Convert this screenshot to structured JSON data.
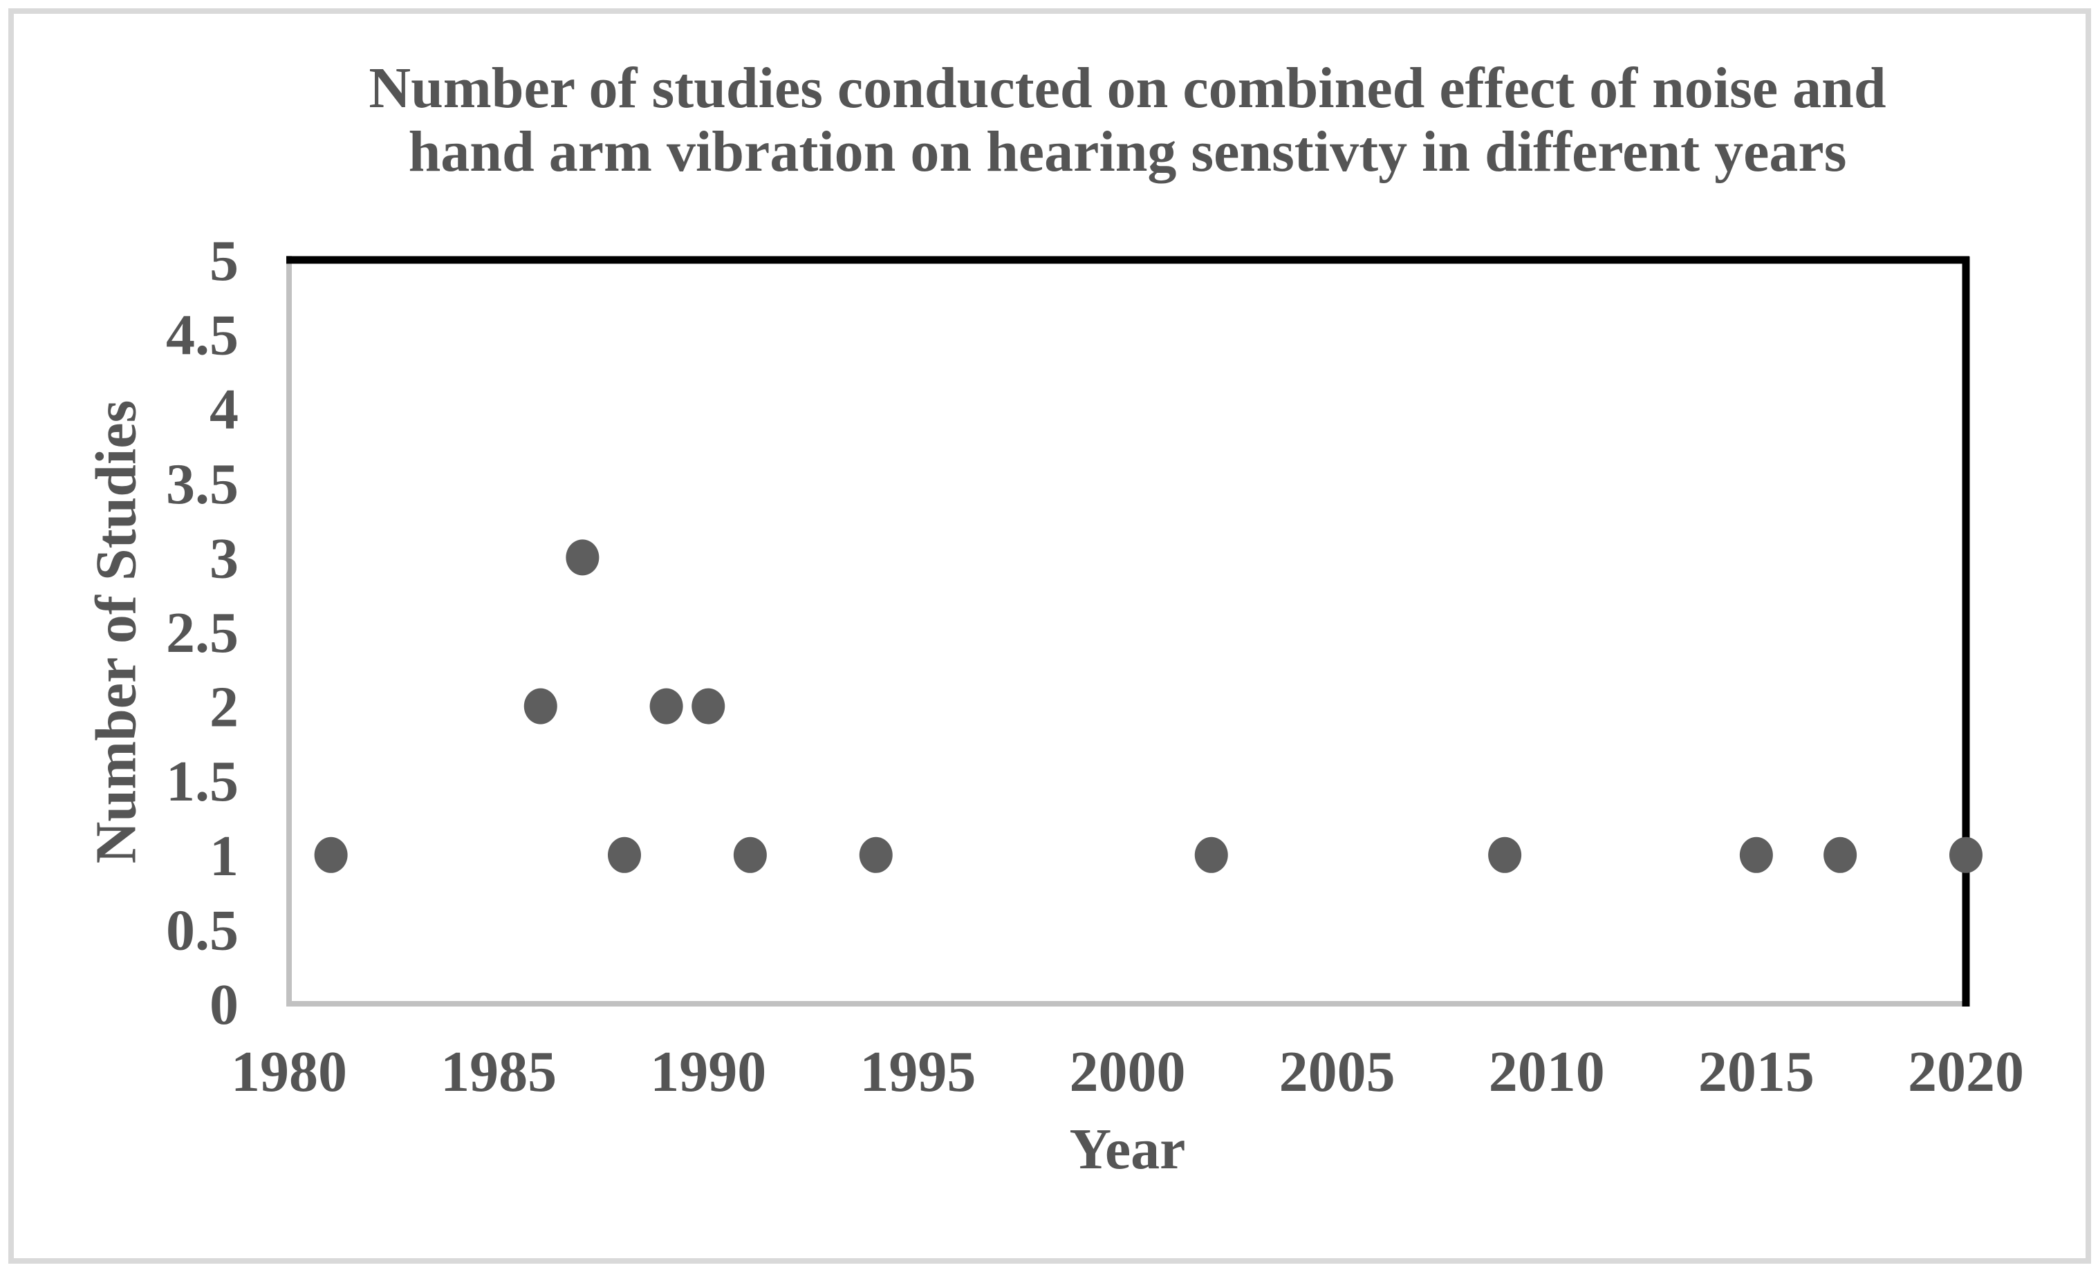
{
  "chart_data": {
    "type": "scatter",
    "title": "Number of studies conducted on combined effect of noise and hand arm vibration on hearing senstivty in different years",
    "title_lines": [
      "Number of studies conducted on combined effect of noise and",
      "hand arm vibration on hearing senstivty in different years"
    ],
    "xlabel": "Year",
    "ylabel": "Number of Studies",
    "xlim": [
      1980,
      2020
    ],
    "ylim": [
      0,
      5
    ],
    "x_ticks": [
      1980,
      1985,
      1990,
      1995,
      2000,
      2005,
      2010,
      2015,
      2020
    ],
    "x_tick_labels": [
      "1980",
      "1985",
      "1990",
      "1995",
      "2000",
      "2005",
      "2010",
      "2015",
      "2020"
    ],
    "y_ticks": [
      0,
      0.5,
      1,
      1.5,
      2,
      2.5,
      3,
      3.5,
      4,
      4.5,
      5
    ],
    "y_tick_labels": [
      "0",
      "0.5",
      "1",
      "1.5",
      "2",
      "2.5",
      "3",
      "3.5",
      "4",
      "4.5",
      "5"
    ],
    "grid": false,
    "legend": false,
    "points": [
      {
        "x": 1981,
        "y": 1
      },
      {
        "x": 1986,
        "y": 2
      },
      {
        "x": 1987,
        "y": 3
      },
      {
        "x": 1988,
        "y": 1
      },
      {
        "x": 1989,
        "y": 2
      },
      {
        "x": 1990,
        "y": 2
      },
      {
        "x": 1991,
        "y": 1
      },
      {
        "x": 1994,
        "y": 1
      },
      {
        "x": 2002,
        "y": 1
      },
      {
        "x": 2009,
        "y": 1
      },
      {
        "x": 2015,
        "y": 1
      },
      {
        "x": 2017,
        "y": 1
      },
      {
        "x": 2020,
        "y": 1
      }
    ],
    "colors": {
      "marker": "#5e5e5e",
      "text": "#555555",
      "axis_light": "#c1c1c1",
      "axis_dark": "#000000",
      "frame_border": "#d9d9d9",
      "background": "#ffffff"
    }
  }
}
